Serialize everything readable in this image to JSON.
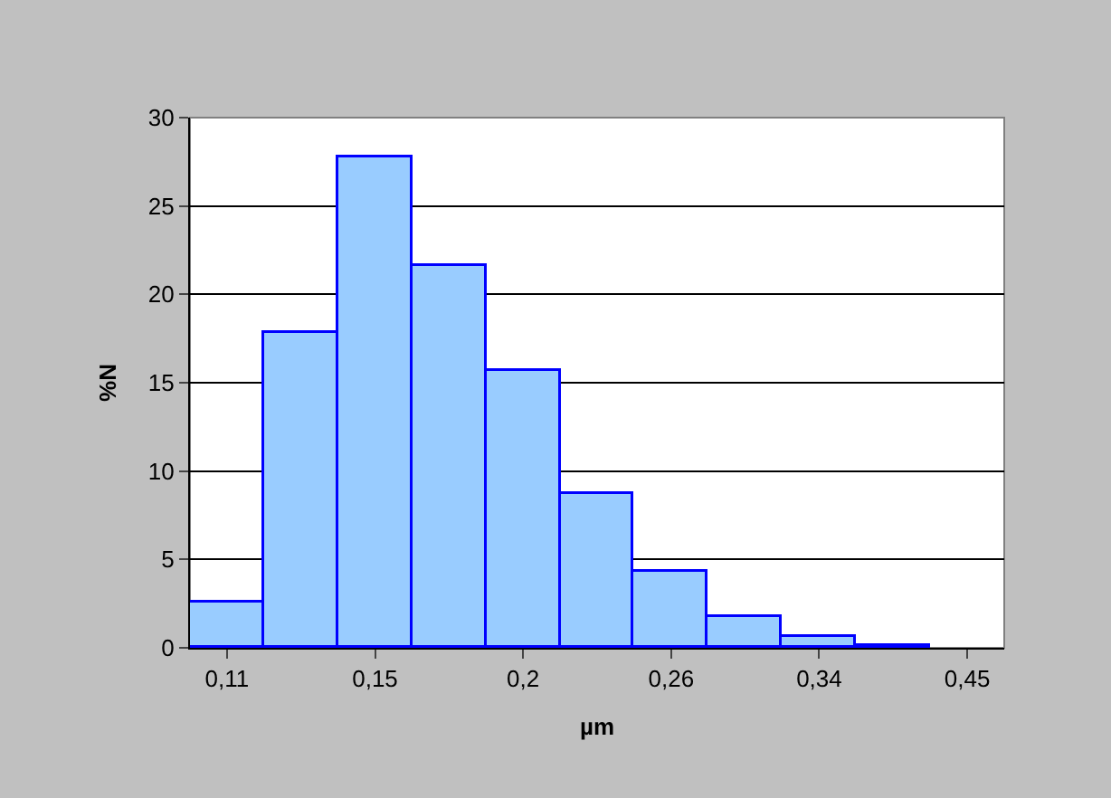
{
  "chart_data": {
    "type": "bar",
    "xlabel": "µm",
    "ylabel": "%N",
    "categories": [
      "0,11",
      null,
      "0,15",
      null,
      "0,2",
      null,
      "0,26",
      null,
      "0,34",
      null,
      "0,45"
    ],
    "values": [
      2.6,
      17.8,
      27.7,
      21.6,
      15.7,
      8.7,
      4.3,
      1.7,
      0.6,
      0.1,
      null
    ],
    "color": "#99ccff",
    "ylim": [
      0,
      30
    ],
    "yticks": [
      0,
      5,
      10,
      15,
      20,
      25,
      30
    ],
    "grid": "y",
    "legend": false
  }
}
